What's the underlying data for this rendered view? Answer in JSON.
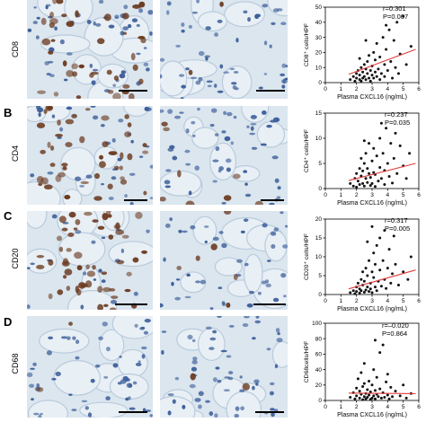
{
  "figure": {
    "rows": [
      {
        "letter": "",
        "stain": "CD8",
        "stats": {
          "r": "r=0.301",
          "p": "P=0.007"
        },
        "ylabel": "CD8⁺ cells/HPF",
        "xlabel": "Plasma CXCL16 (ng/mL)"
      },
      {
        "letter": "B",
        "stain": "CD4",
        "stats": {
          "r": "r=0.237",
          "p": "P=0.035"
        },
        "ylabel": "CD4⁺ cells/HPF",
        "xlabel": "Plasma CXCL16 (ng/mL)"
      },
      {
        "letter": "C",
        "stain": "CD20",
        "stats": {
          "r": "r=0.317",
          "p": "P=0.005"
        },
        "ylabel": "CD20⁺ cells/HPF",
        "xlabel": "Plasma CXCL16 (ng/mL)"
      },
      {
        "letter": "D",
        "stain": "CD68",
        "stats": {
          "r": "r=–0.020",
          "p": "P=0.864"
        },
        "ylabel": "CD68cells/HPF",
        "xlabel": "Plasma CXCL16 (ng/mL)"
      }
    ],
    "colors": {
      "tissue_bg": "#dbe6ef",
      "nucleus": "#3d5f9a",
      "stain_brown": "#6b3a1f",
      "fit_line": "#e03c3c",
      "point": "#111111"
    }
  },
  "chart_data": [
    {
      "type": "scatter",
      "xlabel": "Plasma CXCL16 (ng/mL)",
      "ylabel": "CD8⁺ cells/HPF",
      "xlim": [
        0,
        6
      ],
      "ylim": [
        0,
        50
      ],
      "x_ticks": [
        0,
        1,
        2,
        3,
        4,
        5,
        6
      ],
      "y_ticks": [
        0,
        10,
        20,
        30,
        40,
        50
      ],
      "fit": {
        "x": [
          1.5,
          5.8
        ],
        "y": [
          5.5,
          22
        ]
      },
      "annotation": [
        "r=0.301",
        "P=0.007"
      ],
      "points": [
        [
          1.6,
          2
        ],
        [
          1.8,
          4
        ],
        [
          1.9,
          1
        ],
        [
          2.0,
          6
        ],
        [
          2.0,
          3
        ],
        [
          2.1,
          8
        ],
        [
          2.2,
          2
        ],
        [
          2.2,
          5
        ],
        [
          2.3,
          10
        ],
        [
          2.3,
          1
        ],
        [
          2.4,
          3
        ],
        [
          2.4,
          7
        ],
        [
          2.5,
          12
        ],
        [
          2.5,
          4
        ],
        [
          2.6,
          2
        ],
        [
          2.6,
          9
        ],
        [
          2.7,
          6
        ],
        [
          2.7,
          14
        ],
        [
          2.8,
          3
        ],
        [
          2.8,
          18
        ],
        [
          2.9,
          8
        ],
        [
          2.9,
          1
        ],
        [
          3.0,
          5
        ],
        [
          3.0,
          11
        ],
        [
          3.1,
          20
        ],
        [
          3.1,
          3
        ],
        [
          3.2,
          7
        ],
        [
          3.2,
          15
        ],
        [
          3.3,
          4
        ],
        [
          3.3,
          26
        ],
        [
          3.4,
          9
        ],
        [
          3.5,
          2
        ],
        [
          3.5,
          17
        ],
        [
          3.6,
          6
        ],
        [
          3.7,
          30
        ],
        [
          3.8,
          12
        ],
        [
          3.8,
          4
        ],
        [
          3.9,
          22
        ],
        [
          4.0,
          8
        ],
        [
          4.1,
          35
        ],
        [
          4.2,
          14
        ],
        [
          4.3,
          3
        ],
        [
          4.4,
          28
        ],
        [
          4.5,
          10
        ],
        [
          4.6,
          40
        ],
        [
          4.8,
          19
        ],
        [
          5.0,
          44
        ],
        [
          5.2,
          12
        ],
        [
          5.5,
          24
        ],
        [
          2.6,
          28
        ],
        [
          3.9,
          38
        ],
        [
          2.2,
          16
        ],
        [
          4.7,
          6
        ]
      ]
    },
    {
      "type": "scatter",
      "xlabel": "Plasma CXCL16 (ng/mL)",
      "ylabel": "CD4⁺ cells/HPF",
      "xlim": [
        0,
        6
      ],
      "ylim": [
        0,
        15
      ],
      "x_ticks": [
        0,
        1,
        2,
        3,
        4,
        5,
        6
      ],
      "y_ticks": [
        0,
        5,
        10,
        15
      ],
      "fit": {
        "x": [
          1.5,
          5.8
        ],
        "y": [
          1.6,
          5.0
        ]
      },
      "annotation": [
        "r=0.237",
        "P=0.035"
      ],
      "points": [
        [
          1.6,
          1
        ],
        [
          1.8,
          0.5
        ],
        [
          1.9,
          2
        ],
        [
          2.0,
          0.3
        ],
        [
          2.0,
          3
        ],
        [
          2.1,
          1.5
        ],
        [
          2.2,
          4
        ],
        [
          2.2,
          0.8
        ],
        [
          2.3,
          2.5
        ],
        [
          2.3,
          6
        ],
        [
          2.4,
          1
        ],
        [
          2.4,
          3.5
        ],
        [
          2.5,
          0.5
        ],
        [
          2.5,
          5
        ],
        [
          2.6,
          2
        ],
        [
          2.6,
          7
        ],
        [
          2.7,
          1.2
        ],
        [
          2.7,
          4
        ],
        [
          2.8,
          3
        ],
        [
          2.8,
          9
        ],
        [
          2.9,
          0.6
        ],
        [
          2.9,
          2.2
        ],
        [
          3.0,
          5.5
        ],
        [
          3.0,
          1
        ],
        [
          3.1,
          3.2
        ],
        [
          3.1,
          8
        ],
        [
          3.2,
          0.4
        ],
        [
          3.2,
          2.8
        ],
        [
          3.3,
          6.5
        ],
        [
          3.4,
          1.5
        ],
        [
          3.5,
          4.2
        ],
        [
          3.5,
          10
        ],
        [
          3.6,
          2
        ],
        [
          3.7,
          7
        ],
        [
          3.8,
          0.8
        ],
        [
          3.8,
          3.6
        ],
        [
          3.9,
          12
        ],
        [
          4.0,
          5
        ],
        [
          4.1,
          2.4
        ],
        [
          4.2,
          9
        ],
        [
          4.3,
          1.1
        ],
        [
          4.4,
          6
        ],
        [
          4.6,
          3
        ],
        [
          4.8,
          8.5
        ],
        [
          5.0,
          4.5
        ],
        [
          5.2,
          2
        ],
        [
          5.4,
          7
        ],
        [
          3.6,
          13
        ],
        [
          2.5,
          9.5
        ],
        [
          4.5,
          11
        ]
      ]
    },
    {
      "type": "scatter",
      "xlabel": "Plasma CXCL16 (ng/mL)",
      "ylabel": "CD20⁺ cells/HPF",
      "xlim": [
        0,
        6
      ],
      "ylim": [
        0,
        20
      ],
      "x_ticks": [
        0,
        1,
        2,
        3,
        4,
        5,
        6
      ],
      "y_ticks": [
        0,
        5,
        10,
        15,
        20
      ],
      "fit": {
        "x": [
          1.5,
          5.8
        ],
        "y": [
          1.5,
          6.5
        ]
      },
      "annotation": [
        "r=0.317",
        "P=0.005"
      ],
      "points": [
        [
          1.6,
          0.5
        ],
        [
          1.8,
          1
        ],
        [
          1.9,
          0.2
        ],
        [
          2.0,
          2
        ],
        [
          2.0,
          0.8
        ],
        [
          2.1,
          3
        ],
        [
          2.2,
          1.5
        ],
        [
          2.2,
          0.4
        ],
        [
          2.3,
          4
        ],
        [
          2.3,
          1
        ],
        [
          2.4,
          2.5
        ],
        [
          2.4,
          6
        ],
        [
          2.5,
          0.6
        ],
        [
          2.5,
          3.5
        ],
        [
          2.6,
          1.2
        ],
        [
          2.6,
          7
        ],
        [
          2.7,
          2
        ],
        [
          2.7,
          5
        ],
        [
          2.8,
          0.8
        ],
        [
          2.8,
          9
        ],
        [
          2.9,
          3
        ],
        [
          2.9,
          1.5
        ],
        [
          3.0,
          6
        ],
        [
          3.0,
          0.5
        ],
        [
          3.1,
          4.5
        ],
        [
          3.1,
          11
        ],
        [
          3.2,
          2
        ],
        [
          3.2,
          8
        ],
        [
          3.3,
          1
        ],
        [
          3.3,
          13
        ],
        [
          3.4,
          3.5
        ],
        [
          3.5,
          6.5
        ],
        [
          3.5,
          15
        ],
        [
          3.6,
          2.2
        ],
        [
          3.7,
          9
        ],
        [
          3.8,
          4
        ],
        [
          3.8,
          17
        ],
        [
          3.9,
          1.6
        ],
        [
          4.0,
          7
        ],
        [
          4.1,
          12
        ],
        [
          4.2,
          3
        ],
        [
          4.3,
          5.5
        ],
        [
          4.5,
          8
        ],
        [
          4.7,
          2.5
        ],
        [
          5.0,
          6
        ],
        [
          5.3,
          4
        ],
        [
          5.5,
          10
        ],
        [
          2.7,
          14
        ],
        [
          3.0,
          18
        ],
        [
          4.4,
          15.5
        ]
      ]
    },
    {
      "type": "scatter",
      "xlabel": "Plasma CXCL16 (ng/mL)",
      "ylabel": "CD68cells/HPF",
      "xlim": [
        0,
        6
      ],
      "ylim": [
        0,
        100
      ],
      "x_ticks": [
        0,
        1,
        2,
        3,
        4,
        5,
        6
      ],
      "y_ticks": [
        0,
        20,
        40,
        60,
        80,
        100
      ],
      "fit": {
        "x": [
          1.5,
          5.8
        ],
        "y": [
          9.5,
          8.8
        ]
      },
      "annotation": [
        "r=–0.020",
        "P=0.864"
      ],
      "points": [
        [
          1.6,
          4
        ],
        [
          1.8,
          10
        ],
        [
          1.9,
          2
        ],
        [
          2.0,
          16
        ],
        [
          2.0,
          6
        ],
        [
          2.1,
          28
        ],
        [
          2.2,
          3
        ],
        [
          2.2,
          12
        ],
        [
          2.3,
          8
        ],
        [
          2.3,
          36
        ],
        [
          2.4,
          1
        ],
        [
          2.4,
          18
        ],
        [
          2.5,
          5
        ],
        [
          2.5,
          22
        ],
        [
          2.6,
          2
        ],
        [
          2.6,
          9
        ],
        [
          2.7,
          14
        ],
        [
          2.7,
          4
        ],
        [
          2.8,
          25
        ],
        [
          2.8,
          7
        ],
        [
          2.9,
          1.5
        ],
        [
          2.9,
          11
        ],
        [
          3.0,
          3
        ],
        [
          3.0,
          20
        ],
        [
          3.1,
          6
        ],
        [
          3.1,
          40
        ],
        [
          3.2,
          2
        ],
        [
          3.2,
          13
        ],
        [
          3.3,
          8
        ],
        [
          3.3,
          30
        ],
        [
          3.4,
          5
        ],
        [
          3.5,
          62
        ],
        [
          3.5,
          15
        ],
        [
          3.6,
          3
        ],
        [
          3.7,
          72
        ],
        [
          3.7,
          10
        ],
        [
          3.8,
          4
        ],
        [
          3.9,
          24
        ],
        [
          4.0,
          7
        ],
        [
          4.1,
          2
        ],
        [
          4.2,
          17
        ],
        [
          4.3,
          5
        ],
        [
          4.5,
          12
        ],
        [
          4.8,
          6
        ],
        [
          5.0,
          20
        ],
        [
          5.2,
          3
        ],
        [
          5.5,
          9
        ],
        [
          2.5,
          48
        ],
        [
          3.2,
          78
        ],
        [
          4.0,
          34
        ]
      ]
    }
  ]
}
